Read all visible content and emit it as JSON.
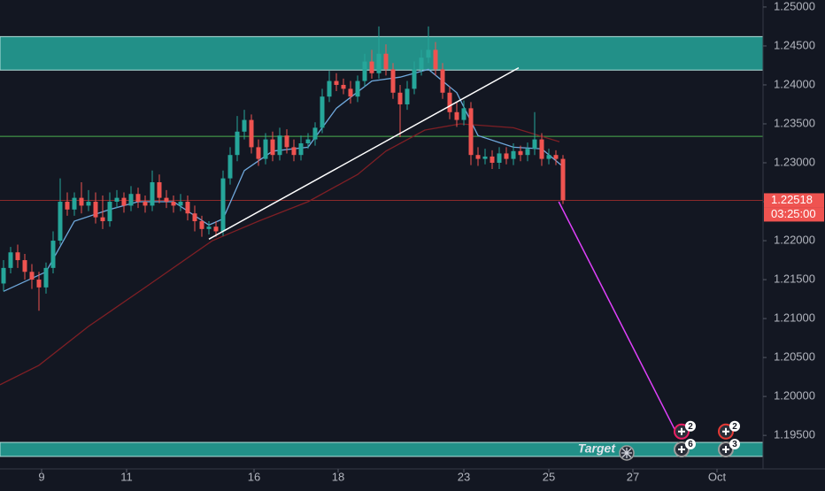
{
  "chart_data": {
    "type": "candlestick",
    "background": "#131722",
    "xlim": [
      -0.5,
      107.25
    ],
    "xticks": [
      {
        "value": 5.375,
        "label": "9"
      },
      {
        "value": 17.375,
        "label": "11"
      },
      {
        "value": 35.375,
        "label": "16"
      },
      {
        "value": 47.25,
        "label": "18"
      },
      {
        "value": 65,
        "label": "23"
      },
      {
        "value": 77,
        "label": "25"
      },
      {
        "value": 88.875,
        "label": "27"
      },
      {
        "value": 100.75,
        "label": "Oct"
      }
    ],
    "ylim": [
      1.1907,
      1.2509
    ],
    "yticks": [
      {
        "value": 1.25,
        "label": "1.25000"
      },
      {
        "value": 1.245,
        "label": "1.24500"
      },
      {
        "value": 1.24,
        "label": "1.24000"
      },
      {
        "value": 1.235,
        "label": "1.23500"
      },
      {
        "value": 1.23,
        "label": "1.23000"
      },
      {
        "value": 1.225,
        "label": "1.22500"
      },
      {
        "value": 1.22,
        "label": "1.22000"
      },
      {
        "value": 1.215,
        "label": "1.21500"
      },
      {
        "value": 1.21,
        "label": "1.21000"
      },
      {
        "value": 1.205,
        "label": "1.20500"
      },
      {
        "value": 1.2,
        "label": "1.20000"
      },
      {
        "value": 1.195,
        "label": "1.19500"
      }
    ],
    "up_color": "#26a69a",
    "down_color": "#ef5350",
    "candles": {
      "x": [
        0,
        1,
        2,
        3,
        4,
        5,
        6,
        7,
        8,
        9,
        10,
        11,
        12,
        13,
        14,
        15,
        16,
        17,
        18,
        19,
        20,
        21,
        22,
        23,
        24,
        25,
        26,
        27,
        28,
        29,
        30,
        31,
        32,
        33,
        34,
        35,
        36,
        37,
        38,
        39,
        40,
        41,
        42,
        43,
        44,
        45,
        46,
        47,
        48,
        49,
        50,
        51,
        52,
        53,
        54,
        55,
        56,
        57,
        58,
        59,
        60,
        61,
        62,
        63,
        64,
        65,
        66,
        67,
        68,
        69,
        70,
        71,
        72,
        73,
        74,
        75,
        76,
        77,
        78,
        79
      ],
      "open": [
        1.2145,
        1.2165,
        1.2185,
        1.2175,
        1.216,
        1.215,
        1.214,
        1.2165,
        1.22,
        1.225,
        1.224,
        1.2255,
        1.2245,
        1.225,
        1.223,
        1.2225,
        1.225,
        1.2255,
        1.2245,
        1.226,
        1.225,
        1.2245,
        1.2275,
        1.2255,
        1.225,
        1.2245,
        1.225,
        1.2235,
        1.2225,
        1.2215,
        1.2218,
        1.2212,
        1.228,
        1.231,
        1.234,
        1.2355,
        1.232,
        1.2305,
        1.233,
        1.231,
        1.2335,
        1.232,
        1.231,
        1.2325,
        1.233,
        1.2345,
        1.2385,
        1.2405,
        1.24,
        1.2395,
        1.2385,
        1.2405,
        1.243,
        1.2415,
        1.244,
        1.242,
        1.239,
        1.2375,
        1.2395,
        1.242,
        1.2435,
        1.2445,
        1.242,
        1.239,
        1.2365,
        1.2355,
        1.237,
        1.231,
        1.2305,
        1.2308,
        1.23,
        1.2312,
        1.2305,
        1.2315,
        1.231,
        1.2318,
        1.233,
        1.2305,
        1.231,
        1.2305
      ],
      "high": [
        1.2175,
        1.2192,
        1.2195,
        1.2183,
        1.217,
        1.216,
        1.2172,
        1.2212,
        1.228,
        1.2262,
        1.2262,
        1.2275,
        1.2265,
        1.2262,
        1.2258,
        1.2262,
        1.2265,
        1.2262,
        1.227,
        1.2268,
        1.2258,
        1.229,
        1.2285,
        1.2265,
        1.2258,
        1.226,
        1.2258,
        1.2245,
        1.2232,
        1.2225,
        1.2225,
        1.229,
        1.232,
        1.236,
        1.2368,
        1.2362,
        1.233,
        1.2338,
        1.234,
        1.2345,
        1.2343,
        1.233,
        1.2335,
        1.2338,
        1.2352,
        1.2395,
        1.2418,
        1.2415,
        1.2408,
        1.2405,
        1.2412,
        1.244,
        1.2445,
        1.2475,
        1.2452,
        1.2428,
        1.24,
        1.2405,
        1.243,
        1.2445,
        1.2475,
        1.2455,
        1.2428,
        1.2398,
        1.2378,
        1.238,
        1.2378,
        1.232,
        1.2318,
        1.2316,
        1.232,
        1.232,
        1.2325,
        1.2322,
        1.2326,
        1.2365,
        1.2338,
        1.2318,
        1.2316,
        1.231
      ],
      "low": [
        1.2135,
        1.2158,
        1.2165,
        1.215,
        1.2138,
        1.211,
        1.2132,
        1.2158,
        1.2195,
        1.2232,
        1.2232,
        1.2235,
        1.2238,
        1.2222,
        1.2215,
        1.2218,
        1.2242,
        1.2236,
        1.2238,
        1.2242,
        1.2236,
        1.2238,
        1.2248,
        1.2242,
        1.2236,
        1.2238,
        1.2226,
        1.2212,
        1.2205,
        1.2208,
        1.2205,
        1.2206,
        1.2272,
        1.2302,
        1.233,
        1.2312,
        1.2296,
        1.2298,
        1.2302,
        1.2303,
        1.2312,
        1.2302,
        1.2303,
        1.2318,
        1.2322,
        1.2338,
        1.2378,
        1.2392,
        1.2388,
        1.2376,
        1.2378,
        1.2398,
        1.2408,
        1.2408,
        1.2412,
        1.2382,
        1.2333,
        1.2368,
        1.2388,
        1.2412,
        1.2428,
        1.2412,
        1.2382,
        1.2356,
        1.2346,
        1.2348,
        1.2297,
        1.2296,
        1.2298,
        1.2292,
        1.2292,
        1.2298,
        1.2297,
        1.2302,
        1.2302,
        1.231,
        1.2296,
        1.2298,
        1.2297,
        1.2247
      ],
      "close": [
        1.2165,
        1.2185,
        1.2175,
        1.216,
        1.215,
        1.214,
        1.2165,
        1.22,
        1.225,
        1.224,
        1.2255,
        1.2245,
        1.225,
        1.223,
        1.2225,
        1.225,
        1.2255,
        1.2245,
        1.226,
        1.225,
        1.2245,
        1.2275,
        1.2255,
        1.225,
        1.2245,
        1.225,
        1.2235,
        1.2225,
        1.2215,
        1.2218,
        1.2212,
        1.228,
        1.231,
        1.234,
        1.2355,
        1.232,
        1.2305,
        1.233,
        1.231,
        1.2335,
        1.232,
        1.231,
        1.2325,
        1.233,
        1.2345,
        1.2385,
        1.2405,
        1.24,
        1.2395,
        1.2385,
        1.2405,
        1.243,
        1.2415,
        1.244,
        1.242,
        1.239,
        1.2375,
        1.2395,
        1.242,
        1.2435,
        1.2445,
        1.242,
        1.239,
        1.2365,
        1.2355,
        1.237,
        1.231,
        1.2305,
        1.2308,
        1.23,
        1.2312,
        1.2305,
        1.2315,
        1.231,
        1.2318,
        1.233,
        1.2305,
        1.231,
        1.2305,
        1.2252
      ]
    },
    "lines": [
      {
        "color": "#7e1f25",
        "x": [
          -0.5,
          5,
          12,
          20,
          29.5,
          36,
          43,
          50,
          54,
          59.5,
          64.5,
          72,
          78.5
        ],
        "values": [
          1.2015,
          1.204,
          1.209,
          1.214,
          1.22,
          1.2225,
          1.225,
          1.2285,
          1.2315,
          1.2342,
          1.235,
          1.2345,
          1.2327
        ]
      },
      {
        "color": "#6fa8dc",
        "x": [
          0,
          6,
          10,
          15,
          19,
          24,
          29,
          31,
          34,
          38,
          43,
          47,
          52,
          56,
          60,
          64,
          67,
          72,
          76,
          79
        ],
        "values": [
          1.2135,
          1.216,
          1.2225,
          1.224,
          1.225,
          1.225,
          1.222,
          1.2228,
          1.229,
          1.2315,
          1.232,
          1.237,
          1.2405,
          1.241,
          1.242,
          1.239,
          1.2335,
          1.232,
          1.2318,
          1.2295
        ]
      }
    ],
    "zones": [
      {
        "from": 1.2419,
        "to": 1.2462,
        "color": "#26a69a"
      },
      {
        "from": 1.1923,
        "to": 1.1941,
        "color": "#26a69a"
      }
    ],
    "levels": [
      {
        "value": 1.2334,
        "color": "#4caf50"
      },
      {
        "value": 1.22518,
        "color": "#8b2a2a"
      }
    ],
    "trend_lines": [
      {
        "color": "#ffffff",
        "x": [
          29,
          72.75
        ],
        "values": [
          1.2202,
          1.2422
        ]
      },
      {
        "color": "#e040fb",
        "x": [
          78.4,
          95.2
        ],
        "values": [
          1.225,
          1.195
        ]
      }
    ],
    "last_price": {
      "value": 1.22518,
      "label": "1.22518"
    },
    "countdown": "03:25:00",
    "annotation": "Target",
    "events": [
      {
        "x": 95.75,
        "level": 1.1955,
        "count": 2,
        "color": "#e91e63"
      },
      {
        "x": 95.75,
        "level": 1.1932,
        "count": 6,
        "color": "#9e9e9e"
      },
      {
        "x": 102,
        "level": 1.1955,
        "count": 2,
        "color": "#e53935"
      },
      {
        "x": 102,
        "level": 1.1932,
        "count": 3,
        "color": "#9e9e9e"
      }
    ]
  }
}
